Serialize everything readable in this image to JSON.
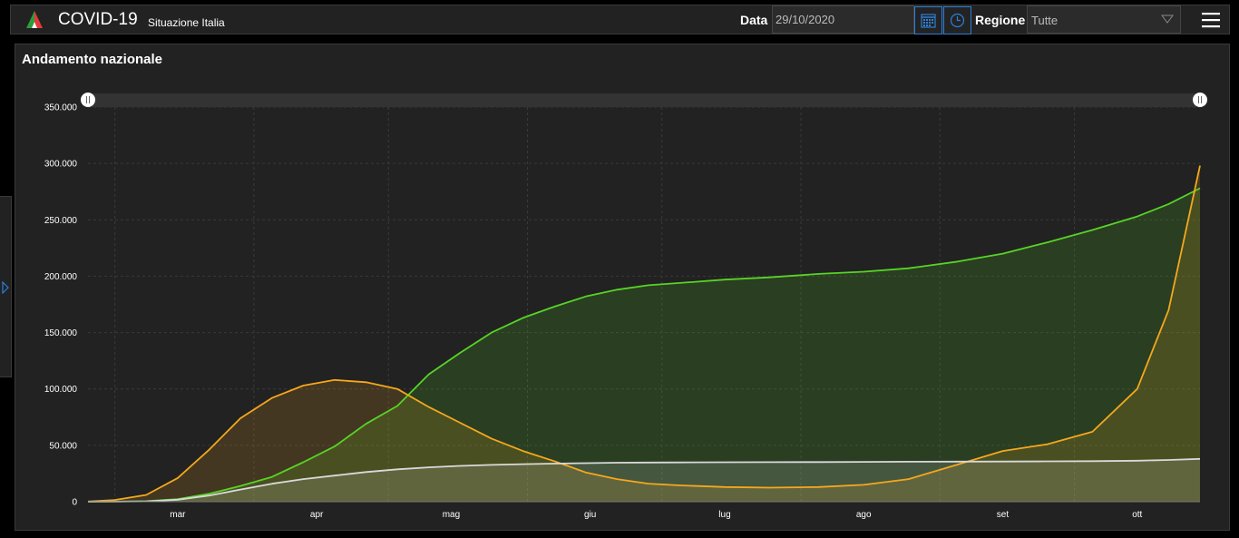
{
  "header": {
    "title": "COVID-19",
    "subtitle": "Situazione Italia",
    "data_label": "Data",
    "date_value": "29/10/2020",
    "regione_label": "Regione",
    "regione_value": "Tutte"
  },
  "panel": {
    "title": "Andamento nazionale"
  },
  "colors": {
    "positivi": "#f5a81c",
    "guariti": "#57d426",
    "deceduti": "#d9d9d9",
    "accent": "#2d7fd8"
  },
  "chart_data": {
    "type": "area",
    "title": "Andamento nazionale",
    "x_start": "2020-02-24",
    "x_end": "2020-10-29",
    "ylim": [
      0,
      350000
    ],
    "y_ticks": [
      "0",
      "50.000",
      "100.000",
      "150.000",
      "200.000",
      "250.000",
      "300.000",
      "350.000"
    ],
    "x_ticks": [
      {
        "label": "mar",
        "date": "2020-03-15"
      },
      {
        "label": "apr",
        "date": "2020-04-15"
      },
      {
        "label": "mag",
        "date": "2020-05-15"
      },
      {
        "label": "giu",
        "date": "2020-06-15"
      },
      {
        "label": "lug",
        "date": "2020-07-15"
      },
      {
        "label": "ago",
        "date": "2020-08-15"
      },
      {
        "label": "set",
        "date": "2020-09-15"
      },
      {
        "label": "ott",
        "date": "2020-10-15"
      }
    ],
    "grid": true,
    "series": [
      {
        "name": "",
        "color_key": "guariti",
        "x": [
          "2020-02-24",
          "2020-03-01",
          "2020-03-08",
          "2020-03-15",
          "2020-03-22",
          "2020-03-29",
          "2020-04-05",
          "2020-04-12",
          "2020-04-19",
          "2020-04-26",
          "2020-05-03",
          "2020-05-10",
          "2020-05-17",
          "2020-05-24",
          "2020-05-31",
          "2020-06-07",
          "2020-06-14",
          "2020-06-21",
          "2020-06-28",
          "2020-07-05",
          "2020-07-15",
          "2020-07-25",
          "2020-08-05",
          "2020-08-15",
          "2020-08-25",
          "2020-09-05",
          "2020-09-15",
          "2020-09-25",
          "2020-10-05",
          "2020-10-15",
          "2020-10-22",
          "2020-10-29"
        ],
        "values": [
          0,
          100,
          500,
          2300,
          7000,
          14000,
          22000,
          35000,
          49000,
          69000,
          85000,
          113000,
          132000,
          150000,
          163000,
          173000,
          182000,
          188000,
          192000,
          194000,
          197000,
          199000,
          202000,
          204000,
          207000,
          213000,
          220000,
          230000,
          241000,
          253000,
          264000,
          278000
        ]
      },
      {
        "name": "",
        "color_key": "positivi",
        "x": [
          "2020-02-24",
          "2020-03-01",
          "2020-03-08",
          "2020-03-15",
          "2020-03-22",
          "2020-03-29",
          "2020-04-05",
          "2020-04-12",
          "2020-04-19",
          "2020-04-26",
          "2020-05-03",
          "2020-05-10",
          "2020-05-17",
          "2020-05-24",
          "2020-05-31",
          "2020-06-07",
          "2020-06-14",
          "2020-06-21",
          "2020-06-28",
          "2020-07-05",
          "2020-07-15",
          "2020-07-25",
          "2020-08-05",
          "2020-08-15",
          "2020-08-25",
          "2020-09-05",
          "2020-09-15",
          "2020-09-25",
          "2020-10-05",
          "2020-10-15",
          "2020-10-22",
          "2020-10-29"
        ],
        "values": [
          200,
          1500,
          6000,
          21000,
          46000,
          74000,
          92000,
          103000,
          108000,
          106000,
          100000,
          84000,
          70000,
          56000,
          45000,
          36000,
          26000,
          20000,
          16000,
          14500,
          13000,
          12500,
          13000,
          15000,
          20000,
          33000,
          45000,
          51000,
          62000,
          100000,
          170000,
          298000
        ]
      },
      {
        "name": "",
        "color_key": "deceduti",
        "x": [
          "2020-02-24",
          "2020-03-01",
          "2020-03-08",
          "2020-03-15",
          "2020-03-22",
          "2020-03-29",
          "2020-04-05",
          "2020-04-12",
          "2020-04-19",
          "2020-04-26",
          "2020-05-03",
          "2020-05-10",
          "2020-05-17",
          "2020-05-24",
          "2020-05-31",
          "2020-06-07",
          "2020-06-14",
          "2020-06-21",
          "2020-06-28",
          "2020-07-05",
          "2020-07-15",
          "2020-07-25",
          "2020-08-05",
          "2020-08-15",
          "2020-08-25",
          "2020-09-05",
          "2020-09-15",
          "2020-09-25",
          "2020-10-05",
          "2020-10-15",
          "2020-10-22",
          "2020-10-29"
        ],
        "values": [
          0,
          50,
          350,
          1800,
          5500,
          10800,
          15900,
          20000,
          23200,
          26300,
          28700,
          30500,
          31800,
          32700,
          33300,
          33800,
          34200,
          34600,
          34750,
          34850,
          35000,
          35100,
          35200,
          35300,
          35450,
          35550,
          35650,
          35800,
          36000,
          36400,
          37000,
          38000
        ]
      }
    ]
  }
}
